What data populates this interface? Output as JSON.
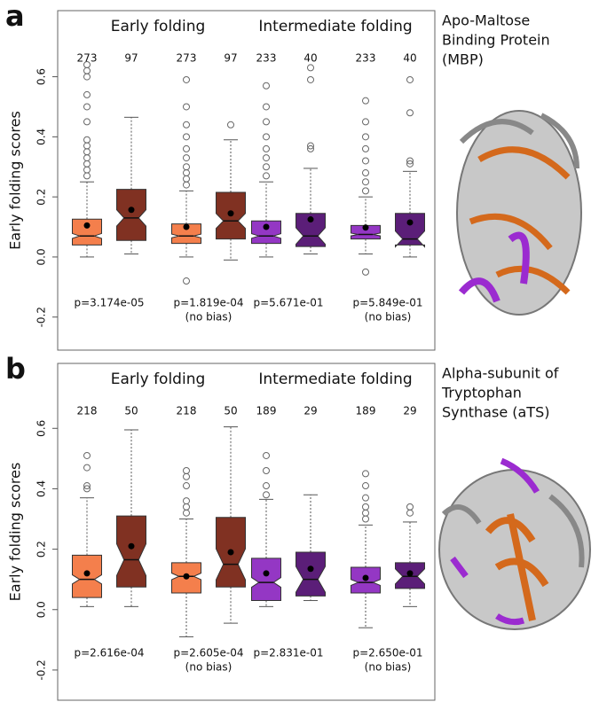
{
  "chart_data": [
    {
      "type": "box",
      "panel": "a",
      "ylabel": "Early folding scores",
      "side_title": [
        "Apo-Maltose",
        "Binding Protein",
        "(MBP)"
      ],
      "groups": [
        "Early folding",
        "Intermediate folding"
      ],
      "ylim": [
        -0.31,
        0.82
      ],
      "yticks": [
        -0.2,
        {
          "value": 0,
          "label": "0.0"
        },
        0.2,
        0.4,
        0.6
      ],
      "pvalues": [
        [
          "p=3.174e-05"
        ],
        [
          "p=1.819e-04",
          "(no bias)"
        ],
        [
          "p=5.671e-01"
        ],
        [
          "p=5.849e-01",
          "(no bias)"
        ]
      ],
      "boxes": [
        {
          "n": 273,
          "color": "#f47f4c",
          "min": 0.0,
          "q1": 0.04,
          "median": 0.07,
          "q3": 0.126,
          "max": 0.25,
          "mean": 0.105,
          "outliers": [
            0.27,
            0.29,
            0.31,
            0.33,
            0.35,
            0.37,
            0.39,
            0.45,
            0.5,
            0.54,
            0.6,
            0.62,
            0.64
          ]
        },
        {
          "n": 97,
          "color": "#803122",
          "min": 0.01,
          "q1": 0.055,
          "median": 0.13,
          "q3": 0.225,
          "max": 0.465,
          "mean": 0.157,
          "outliers": []
        },
        {
          "n": 273,
          "color": "#f47f4c",
          "min": 0.0,
          "q1": 0.045,
          "median": 0.07,
          "q3": 0.11,
          "max": 0.22,
          "mean": 0.1,
          "outliers": [
            -0.08,
            0.24,
            0.26,
            0.28,
            0.3,
            0.33,
            0.36,
            0.4,
            0.44,
            0.5,
            0.59
          ]
        },
        {
          "n": 97,
          "color": "#803122",
          "min": -0.01,
          "q1": 0.06,
          "median": 0.12,
          "q3": 0.215,
          "max": 0.39,
          "mean": 0.145,
          "outliers": [
            0.44
          ]
        },
        {
          "n": 233,
          "color": "#9437c4",
          "min": 0.0,
          "q1": 0.045,
          "median": 0.07,
          "q3": 0.12,
          "max": 0.25,
          "mean": 0.1,
          "outliers": [
            0.27,
            0.3,
            0.33,
            0.36,
            0.4,
            0.45,
            0.5,
            0.57
          ]
        },
        {
          "n": 40,
          "color": "#5b1e78",
          "min": 0.01,
          "q1": 0.035,
          "median": 0.07,
          "q3": 0.145,
          "max": 0.295,
          "mean": 0.125,
          "outliers": [
            0.36,
            0.37,
            0.59,
            0.63
          ]
        },
        {
          "n": 233,
          "color": "#9437c4",
          "min": 0.01,
          "q1": 0.06,
          "median": 0.075,
          "q3": 0.105,
          "max": 0.2,
          "mean": 0.098,
          "outliers": [
            -0.05,
            0.22,
            0.25,
            0.28,
            0.32,
            0.36,
            0.4,
            0.45,
            0.52
          ]
        },
        {
          "n": 40,
          "color": "#5b1e78",
          "min": 0.0,
          "q1": 0.04,
          "median": 0.06,
          "q3": 0.145,
          "max": 0.285,
          "mean": 0.115,
          "outliers": [
            0.31,
            0.32,
            0.48,
            0.59
          ]
        }
      ]
    },
    {
      "type": "box",
      "panel": "b",
      "ylabel": "Early folding scores",
      "side_title": [
        "Alpha-subunit of",
        "Tryptophan",
        "Synthase (aTS)"
      ],
      "groups": [
        "Early folding",
        "Intermediate folding"
      ],
      "ylim": [
        -0.3,
        0.815
      ],
      "yticks": [
        -0.2,
        {
          "value": 0,
          "label": "0.0"
        },
        0.2,
        0.4,
        0.6
      ],
      "pvalues": [
        [
          "p=2.616e-04"
        ],
        [
          "p=2.605e-04",
          "(no bias)"
        ],
        [
          "p=2.831e-01"
        ],
        [
          "p=2.650e-01",
          "(no bias)"
        ]
      ],
      "boxes": [
        {
          "n": 218,
          "color": "#f47f4c",
          "min": 0.01,
          "q1": 0.04,
          "median": 0.1,
          "q3": 0.18,
          "max": 0.37,
          "mean": 0.12,
          "outliers": [
            0.4,
            0.41,
            0.47,
            0.51
          ]
        },
        {
          "n": 50,
          "color": "#803122",
          "min": 0.01,
          "q1": 0.075,
          "median": 0.165,
          "q3": 0.31,
          "max": 0.595,
          "mean": 0.21,
          "outliers": []
        },
        {
          "n": 218,
          "color": "#f47f4c",
          "min": -0.09,
          "q1": 0.055,
          "median": 0.11,
          "q3": 0.155,
          "max": 0.3,
          "mean": 0.11,
          "outliers": [
            0.32,
            0.34,
            0.36,
            0.41,
            0.44,
            0.46
          ]
        },
        {
          "n": 50,
          "color": "#803122",
          "min": -0.045,
          "q1": 0.075,
          "median": 0.15,
          "q3": 0.305,
          "max": 0.605,
          "mean": 0.19,
          "outliers": []
        },
        {
          "n": 189,
          "color": "#9437c4",
          "min": 0.01,
          "q1": 0.03,
          "median": 0.09,
          "q3": 0.17,
          "max": 0.365,
          "mean": 0.12,
          "outliers": [
            0.38,
            0.41,
            0.46,
            0.51
          ]
        },
        {
          "n": 29,
          "color": "#5b1e78",
          "min": 0.03,
          "q1": 0.045,
          "median": 0.1,
          "q3": 0.19,
          "max": 0.38,
          "mean": 0.135,
          "outliers": []
        },
        {
          "n": 189,
          "color": "#9437c4",
          "min": -0.06,
          "q1": 0.055,
          "median": 0.09,
          "q3": 0.14,
          "max": 0.28,
          "mean": 0.105,
          "outliers": [
            0.3,
            0.32,
            0.34,
            0.37,
            0.41,
            0.45
          ]
        },
        {
          "n": 29,
          "color": "#5b1e78",
          "min": 0.01,
          "q1": 0.07,
          "median": 0.11,
          "q3": 0.155,
          "max": 0.29,
          "mean": 0.12,
          "outliers": [
            0.32,
            0.34
          ]
        }
      ]
    }
  ]
}
